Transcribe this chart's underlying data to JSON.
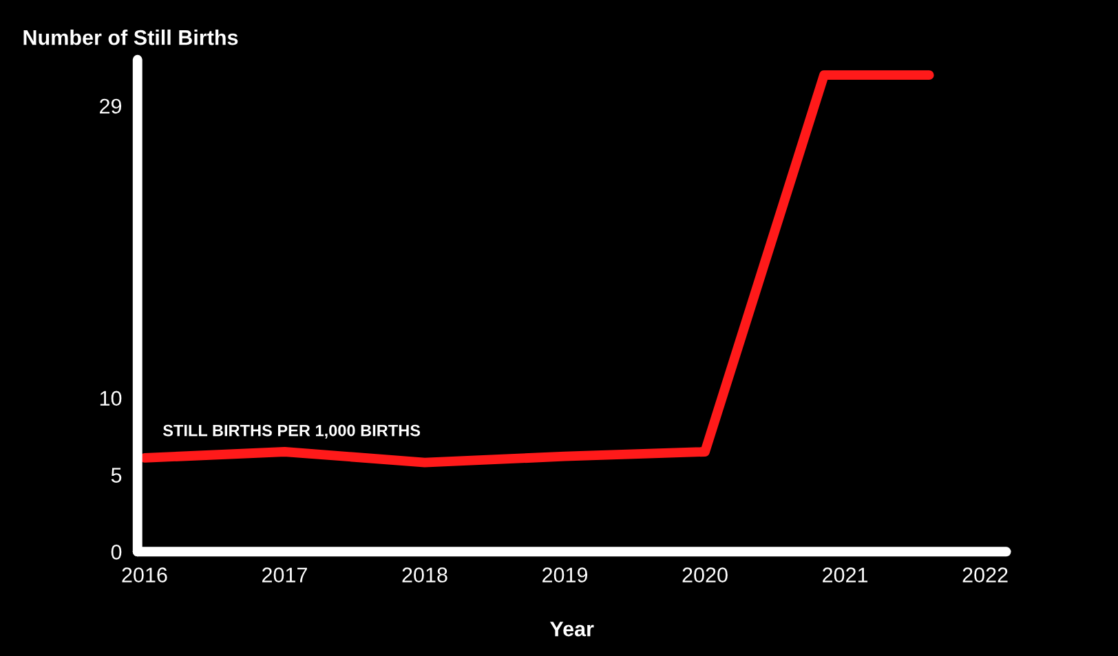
{
  "chart_data": {
    "type": "line",
    "ylabel": "Number of Still Births",
    "xlabel": "Year",
    "series": [
      {
        "name": "STILL BIRTHS PER 1,000 BIRTHS",
        "color": "#ff1a1a",
        "x": [
          2016,
          2017,
          2018,
          2019,
          2020,
          2020.85,
          2021.6
        ],
        "values": [
          6.1,
          6.5,
          5.8,
          6.2,
          6.5,
          31,
          31
        ]
      }
    ],
    "xlim": [
      2015.95,
      2022.15
    ],
    "xticks": [
      2016,
      2017,
      2018,
      2019,
      2020,
      2021,
      2022
    ],
    "ylim": [
      0,
      32
    ],
    "yticks": [
      0,
      5,
      10,
      29
    ],
    "grid": false,
    "legend": false,
    "marker": "none",
    "line_style": "solid"
  }
}
